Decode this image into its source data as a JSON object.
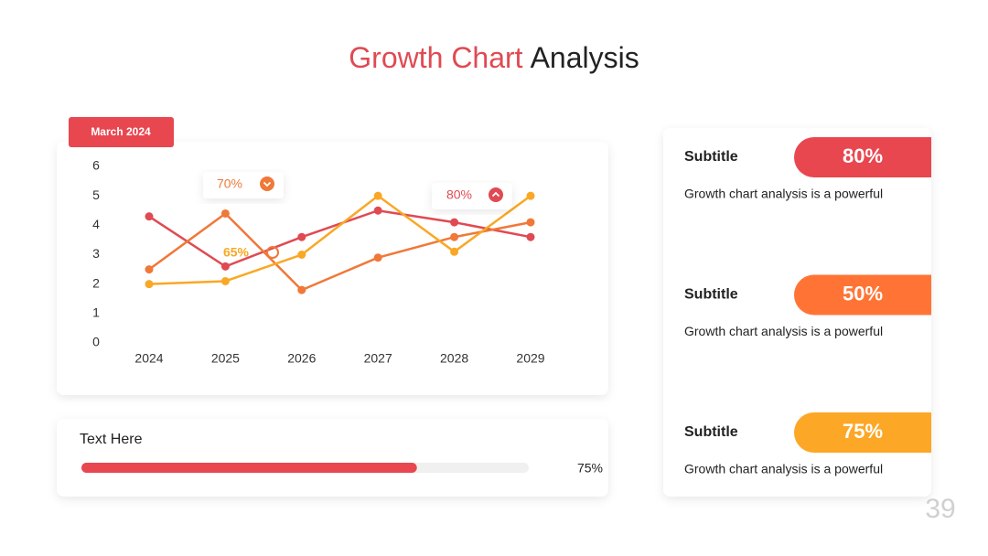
{
  "header": {
    "title_highlight": "Growth Chart",
    "title_rest": "Analysis"
  },
  "badge": "March 2024",
  "chart_data": {
    "type": "line",
    "categories": [
      "2024",
      "2025",
      "2026",
      "2027",
      "2028",
      "2029"
    ],
    "series": [
      {
        "color": "#e04a52",
        "values": [
          4.3,
          2.6,
          3.6,
          4.5,
          4.1,
          3.6
        ]
      },
      {
        "color": "#f07838",
        "values": [
          2.5,
          4.4,
          1.8,
          2.9,
          3.6,
          4.1
        ]
      },
      {
        "color": "#f9a825",
        "values": [
          2.0,
          2.1,
          3.0,
          5.0,
          3.1,
          5.0
        ]
      }
    ],
    "ylim": [
      0,
      6
    ],
    "yticks": [
      0,
      1,
      2,
      3,
      4,
      5,
      6
    ],
    "grid": false,
    "annotations": [
      {
        "text": "70%",
        "color": "#f07838",
        "icon": "down"
      },
      {
        "text": "80%",
        "color": "#e04a52",
        "icon": "up"
      },
      {
        "text": "65%",
        "color": "#f9a825"
      }
    ]
  },
  "progress": {
    "label": "Text Here",
    "value": 75,
    "value_label": "75%",
    "color": "#e8474f"
  },
  "cards": [
    {
      "subtitle": "Subtitle",
      "badge": "80%",
      "color": "#e8474f",
      "text": "Growth chart analysis is a powerful"
    },
    {
      "subtitle": "Subtitle",
      "badge": "50%",
      "color": "#ff7434",
      "text": "Growth chart analysis is a powerful"
    },
    {
      "subtitle": "Subtitle",
      "badge": "75%",
      "color": "#fda726",
      "text": "Growth chart analysis is a powerful"
    }
  ],
  "page_number": "39"
}
